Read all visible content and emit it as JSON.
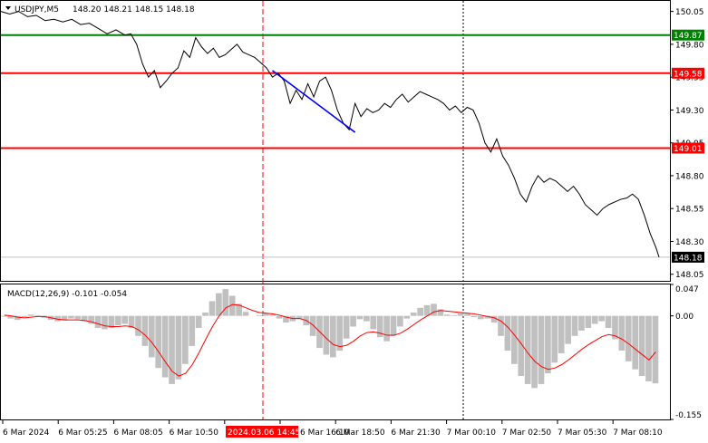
{
  "header": {
    "symbol_label": "USDJPY,M5",
    "ohlc": "148.20 148.21 148.15 148.18"
  },
  "macd": {
    "label": "MACD(12,26,9) -0.101 -0.054"
  },
  "colors": {
    "price_line": "#000000",
    "support_line": "#ff0000",
    "resistance_line": "#008000",
    "trend_line": "#0000ff",
    "macd_hist": "#c0c0c0",
    "macd_signal": "#ff0000",
    "highlight_bg": "#ff0000"
  },
  "chart_data": {
    "type": "line",
    "price_axis": {
      "ylim": [
        148.0,
        150.13
      ],
      "ticks": [
        "150.05",
        "149.80",
        "149.55",
        "149.30",
        "149.05",
        "148.80",
        "148.55",
        "148.30",
        "148.05"
      ],
      "tick_values": [
        150.05,
        149.8,
        149.55,
        149.3,
        149.05,
        148.8,
        148.55,
        148.3,
        148.05
      ]
    },
    "levels": [
      {
        "label": "149.87",
        "value": 149.87,
        "color": "#008000"
      },
      {
        "label": "149.58",
        "value": 149.58,
        "color": "#ff0000"
      },
      {
        "label": "149.01",
        "value": 149.01,
        "color": "#ff0000"
      },
      {
        "label": "148.18",
        "value": 148.18,
        "color": "#000000"
      }
    ],
    "price_series": [
      [
        0,
        150.05
      ],
      [
        3,
        150.03
      ],
      [
        6,
        150.05
      ],
      [
        9,
        150.01
      ],
      [
        12,
        150.02
      ],
      [
        15,
        149.98
      ],
      [
        18,
        149.99
      ],
      [
        21,
        149.97
      ],
      [
        24,
        149.99
      ],
      [
        27,
        149.95
      ],
      [
        30,
        149.96
      ],
      [
        33,
        149.92
      ],
      [
        36,
        149.88
      ],
      [
        39,
        149.91
      ],
      [
        42,
        149.87
      ],
      [
        44,
        149.88
      ],
      [
        46,
        149.8
      ],
      [
        48,
        149.65
      ],
      [
        50,
        149.55
      ],
      [
        52,
        149.6
      ],
      [
        54,
        149.47
      ],
      [
        56,
        149.52
      ],
      [
        58,
        149.58
      ],
      [
        60,
        149.62
      ],
      [
        62,
        149.75
      ],
      [
        64,
        149.7
      ],
      [
        66,
        149.85
      ],
      [
        68,
        149.78
      ],
      [
        70,
        149.73
      ],
      [
        72,
        149.77
      ],
      [
        74,
        149.7
      ],
      [
        76,
        149.72
      ],
      [
        78,
        149.76
      ],
      [
        80,
        149.8
      ],
      [
        82,
        149.74
      ],
      [
        84,
        149.72
      ],
      [
        86,
        149.7
      ],
      [
        88,
        149.66
      ],
      [
        90,
        149.62
      ],
      [
        92,
        149.55
      ],
      [
        94,
        149.58
      ],
      [
        96,
        149.52
      ],
      [
        98,
        149.35
      ],
      [
        100,
        149.45
      ],
      [
        102,
        149.38
      ],
      [
        104,
        149.5
      ],
      [
        106,
        149.4
      ],
      [
        108,
        149.52
      ],
      [
        110,
        149.55
      ],
      [
        112,
        149.45
      ],
      [
        114,
        149.3
      ],
      [
        116,
        149.2
      ],
      [
        118,
        149.15
      ],
      [
        120,
        149.35
      ],
      [
        122,
        149.25
      ],
      [
        124,
        149.31
      ],
      [
        126,
        149.28
      ],
      [
        128,
        149.3
      ],
      [
        130,
        149.35
      ],
      [
        132,
        149.32
      ],
      [
        134,
        149.38
      ],
      [
        136,
        149.42
      ],
      [
        138,
        149.36
      ],
      [
        140,
        149.4
      ],
      [
        142,
        149.44
      ],
      [
        144,
        149.42
      ],
      [
        146,
        149.4
      ],
      [
        148,
        149.38
      ],
      [
        150,
        149.35
      ],
      [
        152,
        149.3
      ],
      [
        154,
        149.33
      ],
      [
        156,
        149.28
      ],
      [
        158,
        149.32
      ],
      [
        160,
        149.3
      ],
      [
        162,
        149.2
      ],
      [
        164,
        149.05
      ],
      [
        166,
        148.98
      ],
      [
        168,
        149.08
      ],
      [
        170,
        148.95
      ],
      [
        172,
        148.88
      ],
      [
        174,
        148.78
      ],
      [
        176,
        148.66
      ],
      [
        178,
        148.6
      ],
      [
        180,
        148.72
      ],
      [
        182,
        148.8
      ],
      [
        184,
        148.75
      ],
      [
        186,
        148.78
      ],
      [
        188,
        148.76
      ],
      [
        190,
        148.72
      ],
      [
        192,
        148.68
      ],
      [
        194,
        148.72
      ],
      [
        196,
        148.66
      ],
      [
        198,
        148.58
      ],
      [
        200,
        148.54
      ],
      [
        202,
        148.5
      ],
      [
        204,
        148.55
      ],
      [
        206,
        148.58
      ],
      [
        208,
        148.6
      ],
      [
        210,
        148.62
      ],
      [
        212,
        148.63
      ],
      [
        214,
        148.66
      ],
      [
        216,
        148.62
      ],
      [
        218,
        148.5
      ],
      [
        220,
        148.36
      ],
      [
        222,
        148.25
      ],
      [
        223,
        148.18
      ]
    ],
    "trend_line": [
      [
        92,
        149.6
      ],
      [
        120,
        149.13
      ]
    ],
    "macd_axis": {
      "ylim": [
        -0.155,
        0.047
      ],
      "ticks": [
        "0.047",
        "0.00",
        "-0.155"
      ],
      "tick_values": [
        0.047,
        0.0,
        -0.155
      ]
    },
    "macd_hist": [
      -0.001,
      -0.004,
      -0.006,
      -0.002,
      0.002,
      0.001,
      -0.003,
      -0.006,
      -0.008,
      -0.007,
      -0.004,
      -0.005,
      -0.008,
      -0.012,
      -0.018,
      -0.02,
      -0.018,
      -0.014,
      -0.012,
      -0.018,
      -0.03,
      -0.045,
      -0.062,
      -0.078,
      -0.092,
      -0.102,
      -0.095,
      -0.072,
      -0.045,
      -0.018,
      0.005,
      0.022,
      0.034,
      0.04,
      0.03,
      0.018,
      0.006,
      0.0,
      0.001,
      0.004,
      0.002,
      -0.004,
      -0.01,
      -0.008,
      -0.005,
      -0.014,
      -0.03,
      -0.048,
      -0.058,
      -0.062,
      -0.052,
      -0.034,
      -0.016,
      -0.005,
      -0.008,
      -0.02,
      -0.032,
      -0.038,
      -0.03,
      -0.016,
      -0.004,
      0.005,
      0.012,
      0.016,
      0.018,
      0.01,
      0.002,
      0.001,
      0.004,
      0.003,
      -0.002,
      -0.005,
      -0.004,
      -0.01,
      -0.03,
      -0.052,
      -0.072,
      -0.09,
      -0.102,
      -0.108,
      -0.102,
      -0.086,
      -0.07,
      -0.056,
      -0.042,
      -0.03,
      -0.022,
      -0.018,
      -0.012,
      -0.008,
      -0.018,
      -0.035,
      -0.052,
      -0.068,
      -0.08,
      -0.09,
      -0.098,
      -0.101
    ],
    "macd_signal": [
      0.001,
      0.0,
      -0.002,
      -0.003,
      -0.002,
      -0.001,
      -0.001,
      -0.003,
      -0.005,
      -0.006,
      -0.006,
      -0.006,
      -0.007,
      -0.009,
      -0.012,
      -0.015,
      -0.016,
      -0.016,
      -0.015,
      -0.016,
      -0.021,
      -0.029,
      -0.04,
      -0.054,
      -0.069,
      -0.083,
      -0.09,
      -0.086,
      -0.073,
      -0.055,
      -0.035,
      -0.016,
      0.0,
      0.012,
      0.017,
      0.016,
      0.012,
      0.008,
      0.005,
      0.004,
      0.003,
      0.001,
      -0.002,
      -0.004,
      -0.004,
      -0.007,
      -0.014,
      -0.024,
      -0.034,
      -0.043,
      -0.046,
      -0.044,
      -0.038,
      -0.03,
      -0.025,
      -0.024,
      -0.026,
      -0.029,
      -0.029,
      -0.026,
      -0.02,
      -0.013,
      -0.006,
      0.0,
      0.006,
      0.008,
      0.007,
      0.006,
      0.005,
      0.004,
      0.003,
      0.001,
      -0.001,
      -0.003,
      -0.008,
      -0.017,
      -0.029,
      -0.042,
      -0.056,
      -0.068,
      -0.076,
      -0.08,
      -0.078,
      -0.073,
      -0.066,
      -0.058,
      -0.05,
      -0.043,
      -0.037,
      -0.031,
      -0.028,
      -0.03,
      -0.035,
      -0.042,
      -0.05,
      -0.058,
      -0.066,
      -0.054
    ],
    "x_labels": [
      "6 Mar 2024",
      "6 Mar 05:25",
      "6 Mar 08:05",
      "6 Mar 10:50",
      "2024.03.06 14:45",
      "6 Mar 16:10",
      "6 Mar 18:50",
      "6 Mar 21:30",
      "7 Mar 00:10",
      "7 Mar 02:50",
      "7 Mar 05:30",
      "7 Mar 08:10"
    ],
    "highlight_label_index": 4,
    "vlines": [
      {
        "label": "2024.03.06 14:45",
        "style": "dashed",
        "color": "#ff0000"
      },
      {
        "label": "7 Mar 00:10",
        "style": "dotted",
        "color": "#000000"
      }
    ]
  }
}
